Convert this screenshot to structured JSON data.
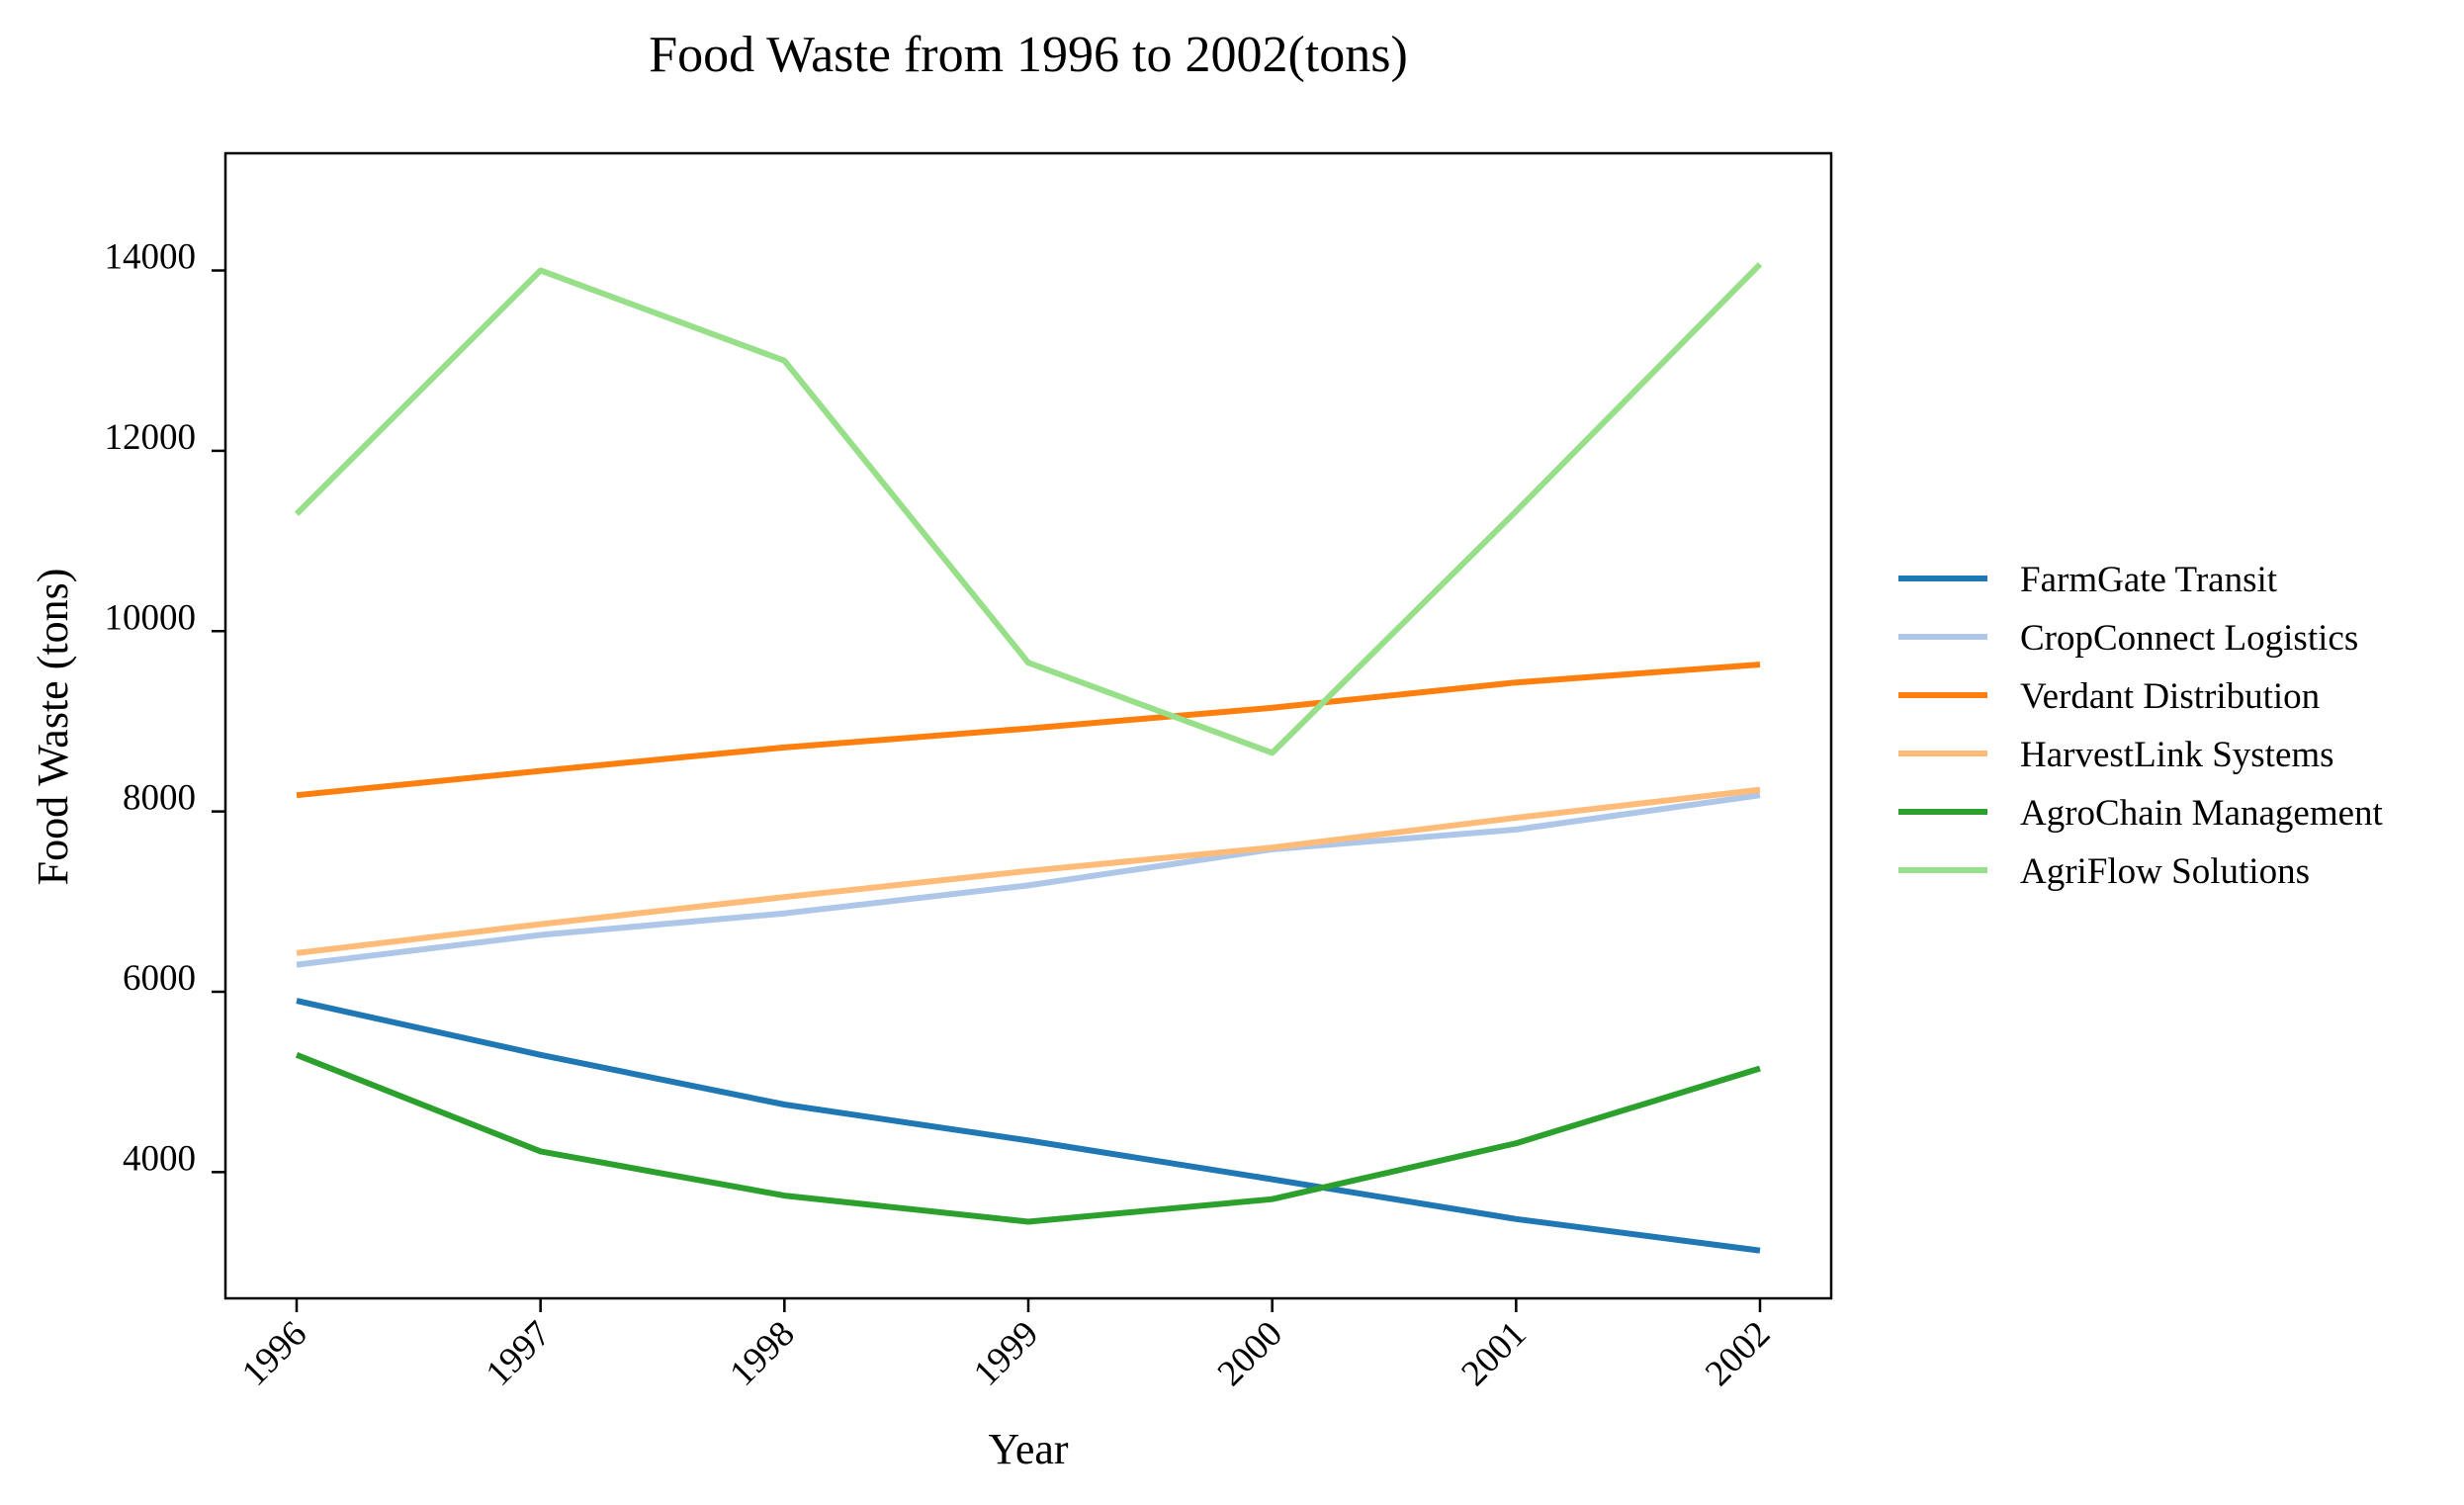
{
  "chart_data": {
    "type": "line",
    "title": "Food Waste from 1996 to 2002(tons)",
    "xlabel": "Year",
    "ylabel": "Food Waste (tons)",
    "x": [
      "1996",
      "1997",
      "1998",
      "1999",
      "2000",
      "2001",
      "2002"
    ],
    "y_ticks": [
      "4000",
      "6000",
      "8000",
      "10000",
      "12000",
      "14000"
    ],
    "ylim": [
      2600,
      15300
    ],
    "grid": false,
    "legend_position": "right",
    "series": [
      {
        "name": "FarmGate Transit",
        "color": "#1f77b4",
        "values": [
          5900,
          5300,
          4750,
          4350,
          3920,
          3480,
          3130
        ]
      },
      {
        "name": "CropConnect Logistics",
        "color": "#aec7e8",
        "values": [
          6300,
          6630,
          6870,
          7180,
          7580,
          7800,
          8180
        ]
      },
      {
        "name": "Verdant Distribution",
        "color": "#ff7f0e",
        "values": [
          8180,
          8450,
          8710,
          8920,
          9150,
          9430,
          9630
        ]
      },
      {
        "name": "HarvestLink Systems",
        "color": "#ffbb78",
        "values": [
          6430,
          6750,
          7050,
          7340,
          7600,
          7930,
          8240
        ]
      },
      {
        "name": "AgroChain Management",
        "color": "#2ca02c",
        "values": [
          5300,
          4230,
          3740,
          3450,
          3700,
          4320,
          5150
        ]
      },
      {
        "name": "AgriFlow Solutions",
        "color": "#98df8a",
        "values": [
          11300,
          14000,
          13000,
          9650,
          8650,
          11330,
          14070
        ]
      }
    ]
  }
}
